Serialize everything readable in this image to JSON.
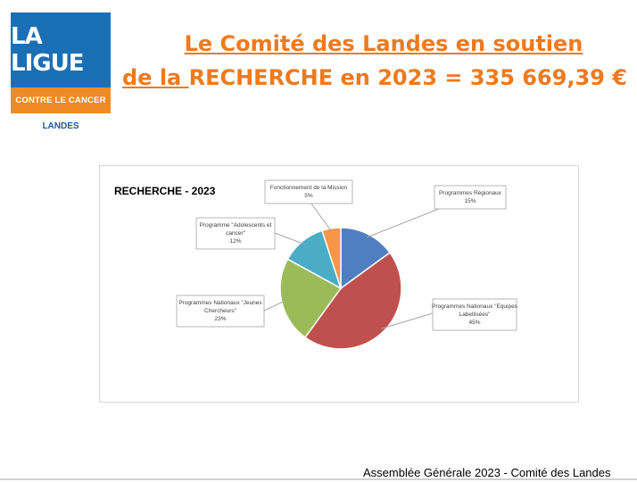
{
  "logo": {
    "name": "LA LIGUE",
    "tagline": "CONTRE LE CANCER",
    "region": "LANDES",
    "colors": {
      "blue": "#1a6fb5",
      "orange": "#f08a24"
    }
  },
  "title": {
    "line1": "Le Comité des Landes en soutien",
    "line2_underlined": "de la ",
    "line2_rest": "RECHERCHE en 2023 = 335 669,39 €",
    "color": "#ee7a1e"
  },
  "chart_data": {
    "type": "pie",
    "title": "RECHERCHE - 2023",
    "start_angle_deg": 0,
    "slices": [
      {
        "label": "Programmes Régionaux",
        "value": 15,
        "value_label": "15%",
        "color": "#4f7fc1"
      },
      {
        "label": "Programmes Nationaux \"Equipes Labellisées\"",
        "value": 45,
        "value_label": "45%",
        "color": "#c0504d"
      },
      {
        "label": "Programmes Nationaux \"Jeunes Chercheurs\"",
        "value": 23,
        "value_label": "23%",
        "color": "#9bbb59"
      },
      {
        "label": "Programme \"Adolescents et cancer\"",
        "value": 12,
        "value_label": "12%",
        "color": "#4bacc6"
      },
      {
        "label": "Fonctionnement de la Mission",
        "value": 5,
        "value_label": "5%",
        "color": "#f79646"
      }
    ]
  },
  "footer": {
    "text": "Assemblée Générale 2023 - Comité des Landes"
  }
}
